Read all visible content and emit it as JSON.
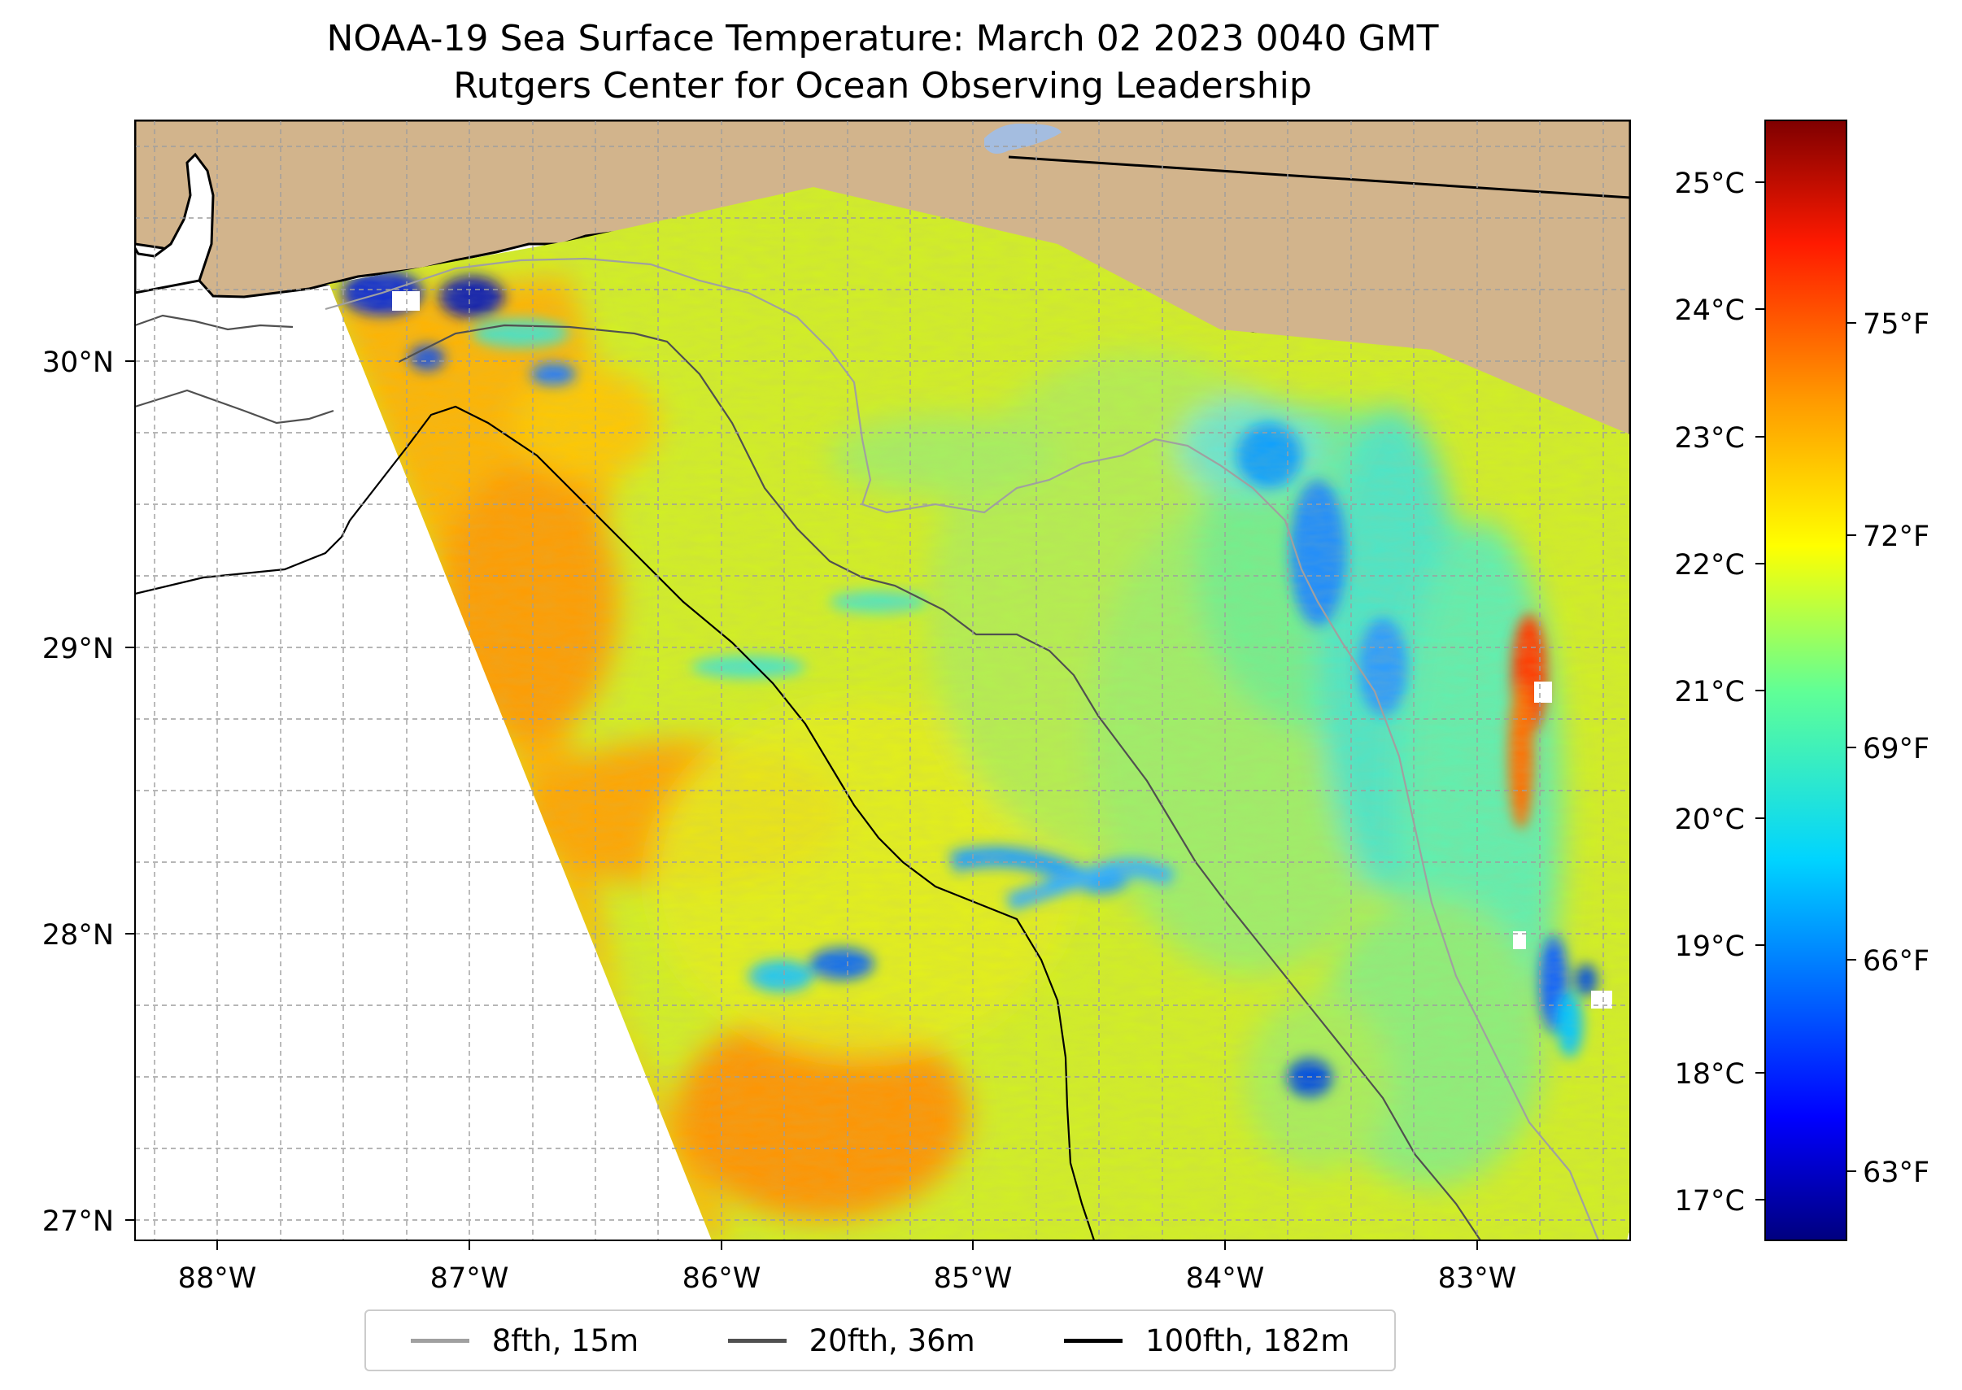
{
  "title": {
    "line1": "NOAA-19 Sea Surface Temperature: March 02 2023 0040 GMT",
    "line2": "Rutgers Center for Ocean Observing Leadership"
  },
  "map": {
    "extent": {
      "lon_min": -88.33,
      "lon_max": -82.39,
      "lat_min": 26.94,
      "lat_max": 30.86
    },
    "latitude_labels": [
      "30°N",
      "29°N",
      "28°N",
      "27°N"
    ],
    "longitude_labels": [
      "88°W",
      "87°W",
      "86°W",
      "85°W",
      "84°W",
      "83°W"
    ],
    "colors": {
      "land": "#d2b48c",
      "coastline": "#000000",
      "lake": "#a4bde0",
      "grid": "#9e9e9e"
    }
  },
  "chart_data": {
    "type": "heatmap",
    "title": "NOAA-19 Sea Surface Temperature: March 02 2023 0040 GMT",
    "variable": "Sea surface temperature",
    "colormap": "jet",
    "clim_celsius": [
      16.7,
      25.5
    ],
    "colorbar_celsius_ticks": [
      "17°C",
      "18°C",
      "19°C",
      "20°C",
      "21°C",
      "22°C",
      "23°C",
      "24°C",
      "25°C"
    ],
    "colorbar_fahrenheit_ticks": [
      "63°F",
      "66°F",
      "69°F",
      "72°F",
      "75°F"
    ],
    "isobaths": [
      {
        "label": "8fth, 15m",
        "color": "#a0a0a0"
      },
      {
        "label": "20fth, 36m",
        "color": "#505050"
      },
      {
        "label": "100fth, 182m",
        "color": "#000000"
      }
    ],
    "observed_features": [
      {
        "description": "warm tongue west of 85.5°W",
        "value_celsius": 23.2
      },
      {
        "description": "cool band near Big Bend shelf",
        "value_celsius": 19.8
      },
      {
        "description": "warm nearshore strip near 29°N, 82.8°W",
        "value_celsius": 24.4
      },
      {
        "description": "cold coastal pockets near Mobile/Pensacola",
        "value_celsius": 17.5
      }
    ]
  }
}
